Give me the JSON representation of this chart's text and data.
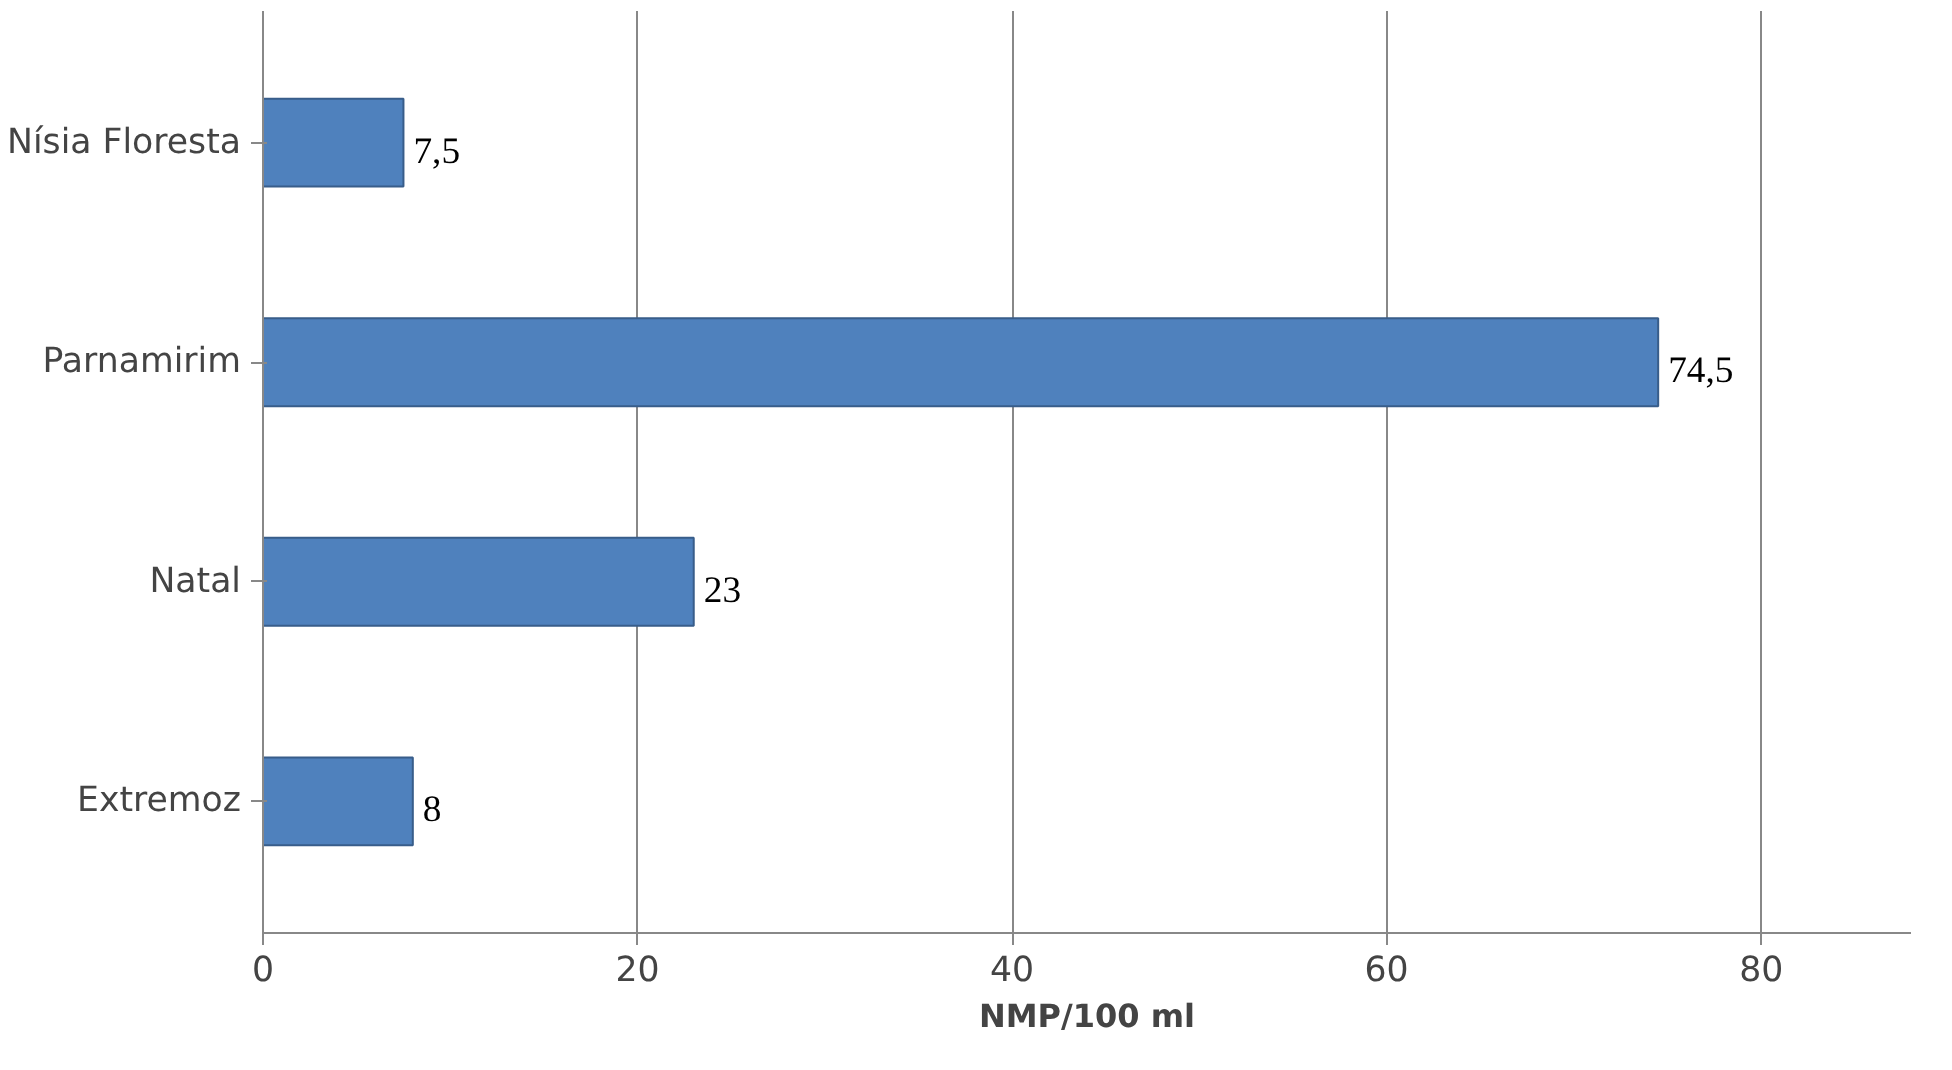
{
  "chart_data": {
    "type": "bar",
    "orientation": "horizontal",
    "xlabel": "NMP/100 ml",
    "categories": [
      "Nísia Floresta",
      "Parnamirim",
      "Natal",
      "Extremoz"
    ],
    "values": [
      7.5,
      74.5,
      23,
      8
    ],
    "value_labels": [
      "7,5",
      "74,5",
      "23",
      "8"
    ],
    "color": "#4f81bd",
    "xlim": [
      0,
      88
    ],
    "xticks": [
      0,
      20,
      40,
      60,
      80
    ],
    "grid": "x"
  }
}
